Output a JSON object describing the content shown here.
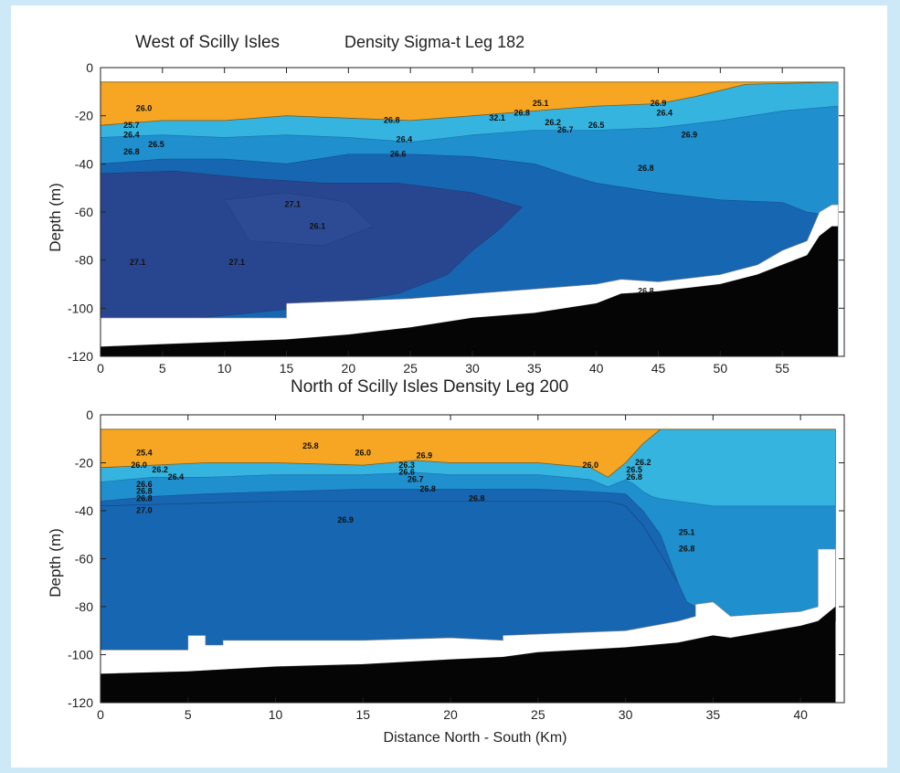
{
  "chart_data": [
    {
      "type": "heatmap",
      "title_left": "West of Scilly Isles",
      "title_right": "Density Sigma-t Leg 182",
      "xlabel": "",
      "ylabel": "Depth (m)",
      "xlim": [
        0,
        60
      ],
      "ylim": [
        -120,
        0
      ],
      "xticks": [
        "0",
        "5",
        "10",
        "15",
        "20",
        "25",
        "30",
        "35",
        "40",
        "45",
        "50",
        "55"
      ],
      "xtick_values": [
        0,
        5,
        10,
        15,
        20,
        25,
        30,
        35,
        40,
        45,
        50,
        55
      ],
      "yticks": [
        "0",
        "-20",
        "-40",
        "-60",
        "-80",
        "-100",
        "-120"
      ],
      "ytick_values": [
        0,
        -20,
        -40,
        -60,
        -80,
        -100,
        -120
      ],
      "data_top": -6,
      "data_xmax": 59.5,
      "color_levels": [
        {
          "level": "25.6",
          "color": "#f6a623"
        },
        {
          "level": "26.0",
          "color": "#35b4e0"
        },
        {
          "level": "26.5",
          "color": "#1f8fce"
        },
        {
          "level": "26.8",
          "color": "#1766b1"
        },
        {
          "level": "27.1",
          "color": "#28468f"
        }
      ],
      "warm_bottom": [
        [
          0,
          -24
        ],
        [
          5,
          -22
        ],
        [
          10,
          -22
        ],
        [
          15,
          -20
        ],
        [
          20,
          -21
        ],
        [
          25,
          -22
        ],
        [
          30,
          -20
        ],
        [
          35,
          -18
        ],
        [
          40,
          -16
        ],
        [
          45,
          -15
        ],
        [
          48,
          -12
        ],
        [
          52,
          -7
        ],
        [
          59.5,
          -6
        ]
      ],
      "pycnocline_bottom": [
        [
          0,
          -29
        ],
        [
          5,
          -28
        ],
        [
          10,
          -29
        ],
        [
          15,
          -28
        ],
        [
          20,
          -29
        ],
        [
          25,
          -31
        ],
        [
          30,
          -28
        ],
        [
          35,
          -26
        ],
        [
          40,
          -26
        ],
        [
          45,
          -25
        ],
        [
          50,
          -22
        ],
        [
          55,
          -18
        ],
        [
          59.5,
          -16
        ]
      ],
      "mid_bottom": [
        [
          0,
          -40
        ],
        [
          5,
          -38
        ],
        [
          10,
          -38
        ],
        [
          15,
          -40
        ],
        [
          20,
          -36
        ],
        [
          25,
          -36
        ],
        [
          30,
          -37
        ],
        [
          35,
          -40
        ],
        [
          38,
          -45
        ],
        [
          40,
          -48
        ],
        [
          45,
          -52
        ],
        [
          50,
          -55
        ],
        [
          55,
          -56
        ],
        [
          57,
          -60
        ],
        [
          59.5,
          -62
        ]
      ],
      "dense_regions": [
        [
          [
            0,
            -44
          ],
          [
            6,
            -43
          ],
          [
            12,
            -46
          ],
          [
            18,
            -48
          ],
          [
            24,
            -48
          ],
          [
            30,
            -52
          ],
          [
            34,
            -58
          ],
          [
            32,
            -68
          ],
          [
            30,
            -76
          ],
          [
            28,
            -86
          ],
          [
            24,
            -94
          ],
          [
            16,
            -100
          ],
          [
            8,
            -104
          ],
          [
            0,
            -104
          ]
        ]
      ],
      "dense_inner": [
        [
          10,
          -55
        ],
        [
          15,
          -52
        ],
        [
          20,
          -56
        ],
        [
          22,
          -66
        ],
        [
          18,
          -74
        ],
        [
          12,
          -72
        ]
      ],
      "gap_top": [
        [
          0,
          -104
        ],
        [
          10,
          -104
        ],
        [
          15,
          -104
        ],
        [
          15,
          -98
        ],
        [
          20,
          -97
        ],
        [
          25,
          -96
        ],
        [
          30,
          -94
        ],
        [
          35,
          -92
        ],
        [
          40,
          -90
        ],
        [
          42,
          -88
        ],
        [
          45,
          -89
        ],
        [
          50,
          -86
        ],
        [
          53,
          -82
        ],
        [
          55,
          -76
        ],
        [
          57,
          -72
        ],
        [
          58,
          -60
        ],
        [
          59,
          -57
        ],
        [
          59.5,
          -57
        ]
      ],
      "seabed": [
        [
          0,
          -116
        ],
        [
          5,
          -115
        ],
        [
          10,
          -114
        ],
        [
          15,
          -113
        ],
        [
          20,
          -111
        ],
        [
          25,
          -108
        ],
        [
          30,
          -104
        ],
        [
          35,
          -102
        ],
        [
          40,
          -98
        ],
        [
          42,
          -94
        ],
        [
          45,
          -93
        ],
        [
          50,
          -90
        ],
        [
          53,
          -86
        ],
        [
          55,
          -82
        ],
        [
          57,
          -78
        ],
        [
          58,
          -70
        ],
        [
          59,
          -66
        ],
        [
          59.5,
          -66
        ]
      ],
      "contour_labels": [
        {
          "text": "26.0",
          "x": 3.5,
          "y": -18
        },
        {
          "text": "25.7",
          "x": 2.5,
          "y": -25
        },
        {
          "text": "26.4",
          "x": 2.5,
          "y": -29
        },
        {
          "text": "26.5",
          "x": 4.5,
          "y": -33
        },
        {
          "text": "26.8",
          "x": 2.5,
          "y": -36
        },
        {
          "text": "26.8",
          "x": 23.5,
          "y": -23
        },
        {
          "text": "26.4",
          "x": 24.5,
          "y": -31
        },
        {
          "text": "26.6",
          "x": 24,
          "y": -37
        },
        {
          "text": "32.1",
          "x": 32,
          "y": -22
        },
        {
          "text": "25.1",
          "x": 35.5,
          "y": -16
        },
        {
          "text": "26.8",
          "x": 34,
          "y": -20
        },
        {
          "text": "26.2",
          "x": 36.5,
          "y": -24
        },
        {
          "text": "26.7",
          "x": 37.5,
          "y": -27
        },
        {
          "text": "26.5",
          "x": 40,
          "y": -25
        },
        {
          "text": "26.9",
          "x": 45,
          "y": -16
        },
        {
          "text": "26.4",
          "x": 45.5,
          "y": -20
        },
        {
          "text": "26.9",
          "x": 47.5,
          "y": -29
        },
        {
          "text": "26.8",
          "x": 44,
          "y": -43
        },
        {
          "text": "27.1",
          "x": 15.5,
          "y": -58
        },
        {
          "text": "26.1",
          "x": 17.5,
          "y": -67
        },
        {
          "text": "27.1",
          "x": 3,
          "y": -82
        },
        {
          "text": "27.1",
          "x": 11,
          "y": -82
        },
        {
          "text": "26.8",
          "x": 44,
          "y": -94
        }
      ]
    },
    {
      "type": "heatmap",
      "title_left": "",
      "title_right": "North of Scilly Isles Density Leg 200",
      "xlabel": "Distance North - South (Km)",
      "ylabel": "Depth (m)",
      "xlim": [
        0,
        42.5
      ],
      "ylim": [
        -120,
        0
      ],
      "xticks": [
        "0",
        "5",
        "10",
        "15",
        "20",
        "25",
        "30",
        "35",
        "40"
      ],
      "xtick_values": [
        0,
        5,
        10,
        15,
        20,
        25,
        30,
        35,
        40
      ],
      "yticks": [
        "0",
        "-20",
        "-40",
        "-60",
        "-80",
        "-100",
        "-120"
      ],
      "ytick_values": [
        0,
        -20,
        -40,
        -60,
        -80,
        -100,
        -120
      ],
      "data_top": -6,
      "data_xmax": 42,
      "color_levels": [
        {
          "level": "25.6",
          "color": "#f6a623"
        },
        {
          "level": "26.0",
          "color": "#35b4e0"
        },
        {
          "level": "26.5",
          "color": "#1f8fce"
        },
        {
          "level": "26.8",
          "color": "#1766b1"
        }
      ],
      "warm_bottom": [
        [
          0,
          -22
        ],
        [
          3,
          -21
        ],
        [
          6,
          -20
        ],
        [
          10,
          -20
        ],
        [
          15,
          -21
        ],
        [
          18,
          -19
        ],
        [
          20,
          -20
        ],
        [
          25,
          -20
        ],
        [
          28,
          -22
        ],
        [
          29,
          -26
        ],
        [
          30,
          -20
        ],
        [
          31,
          -12
        ],
        [
          32,
          -6
        ],
        [
          42,
          -6
        ]
      ],
      "pycnocline_bottom": [
        [
          0,
          -28
        ],
        [
          3,
          -26
        ],
        [
          6,
          -26
        ],
        [
          10,
          -25
        ],
        [
          15,
          -25
        ],
        [
          18,
          -24
        ],
        [
          20,
          -25
        ],
        [
          25,
          -25
        ],
        [
          28,
          -27
        ],
        [
          29,
          -30
        ],
        [
          30,
          -27
        ],
        [
          30.5,
          -29
        ],
        [
          31,
          -32
        ],
        [
          31.5,
          -34
        ],
        [
          32,
          -35
        ],
        [
          33,
          -36
        ],
        [
          34,
          -37
        ],
        [
          35,
          -38
        ],
        [
          42,
          -38
        ]
      ],
      "mid_bottom": [
        [
          0,
          -36
        ],
        [
          3,
          -34
        ],
        [
          6,
          -33
        ],
        [
          10,
          -32
        ],
        [
          15,
          -31
        ],
        [
          20,
          -31
        ],
        [
          25,
          -31
        ],
        [
          28,
          -32
        ],
        [
          30,
          -33
        ],
        [
          31,
          -40
        ],
        [
          32,
          -50
        ],
        [
          32.5,
          -60
        ],
        [
          33,
          -70
        ],
        [
          33.5,
          -78
        ],
        [
          34,
          -80
        ],
        [
          34,
          -86
        ]
      ],
      "dense_regions": [
        [
          [
            0,
            -38
          ],
          [
            5,
            -37
          ],
          [
            10,
            -36
          ],
          [
            15,
            -36
          ],
          [
            20,
            -36
          ],
          [
            25,
            -36
          ],
          [
            29,
            -36
          ],
          [
            30,
            -38
          ],
          [
            31,
            -46
          ],
          [
            32,
            -58
          ],
          [
            33,
            -70
          ],
          [
            34,
            -80
          ],
          [
            34,
            -88
          ],
          [
            30,
            -92
          ],
          [
            25,
            -95
          ],
          [
            23,
            -96
          ],
          [
            15,
            -96
          ],
          [
            7,
            -96
          ],
          [
            5,
            -98
          ],
          [
            0,
            -98
          ]
        ]
      ],
      "dense_inner": [],
      "gap_top": [
        [
          0,
          -98
        ],
        [
          5,
          -98
        ],
        [
          5,
          -92
        ],
        [
          6,
          -92
        ],
        [
          6,
          -96
        ],
        [
          7,
          -96
        ],
        [
          7,
          -94
        ],
        [
          15,
          -94
        ],
        [
          20,
          -93
        ],
        [
          23,
          -94
        ],
        [
          23,
          -92
        ],
        [
          30,
          -90
        ],
        [
          33,
          -86
        ],
        [
          34,
          -84
        ],
        [
          34,
          -79
        ],
        [
          35,
          -78
        ],
        [
          36,
          -84
        ],
        [
          40,
          -82
        ],
        [
          41,
          -80
        ],
        [
          41,
          -56
        ],
        [
          42,
          -56
        ],
        [
          42,
          -54
        ]
      ],
      "seabed": [
        [
          0,
          -108
        ],
        [
          5,
          -107
        ],
        [
          10,
          -105
        ],
        [
          15,
          -104
        ],
        [
          20,
          -102
        ],
        [
          23,
          -101
        ],
        [
          25,
          -99
        ],
        [
          30,
          -97
        ],
        [
          33,
          -95
        ],
        [
          35,
          -92
        ],
        [
          36,
          -93
        ],
        [
          40,
          -88
        ],
        [
          41,
          -86
        ],
        [
          42,
          -80
        ],
        [
          42,
          -74
        ]
      ],
      "contour_labels": [
        {
          "text": "25.4",
          "x": 2.5,
          "y": -17
        },
        {
          "text": "26.0",
          "x": 2.2,
          "y": -22
        },
        {
          "text": "26.2",
          "x": 3.4,
          "y": -24
        },
        {
          "text": "26.4",
          "x": 4.3,
          "y": -27
        },
        {
          "text": "26.6",
          "x": 2.5,
          "y": -30
        },
        {
          "text": "26.8",
          "x": 2.5,
          "y": -33
        },
        {
          "text": "26.8",
          "x": 2.5,
          "y": -36
        },
        {
          "text": "27.0",
          "x": 2.5,
          "y": -41
        },
        {
          "text": "25.8",
          "x": 12,
          "y": -14
        },
        {
          "text": "26.0",
          "x": 15,
          "y": -17
        },
        {
          "text": "26.9",
          "x": 18.5,
          "y": -18
        },
        {
          "text": "26.3",
          "x": 17.5,
          "y": -22
        },
        {
          "text": "26.6",
          "x": 17.5,
          "y": -25
        },
        {
          "text": "26.7",
          "x": 18,
          "y": -28
        },
        {
          "text": "26.8",
          "x": 18.7,
          "y": -32
        },
        {
          "text": "26.8",
          "x": 21.5,
          "y": -36
        },
        {
          "text": "26.9",
          "x": 14,
          "y": -45
        },
        {
          "text": "26.0",
          "x": 28,
          "y": -22
        },
        {
          "text": "26.2",
          "x": 31,
          "y": -21
        },
        {
          "text": "26.5",
          "x": 30.5,
          "y": -24
        },
        {
          "text": "26.8",
          "x": 30.5,
          "y": -27
        },
        {
          "text": "25.1",
          "x": 33.5,
          "y": -50
        },
        {
          "text": "26.8",
          "x": 33.5,
          "y": -57
        }
      ]
    }
  ]
}
